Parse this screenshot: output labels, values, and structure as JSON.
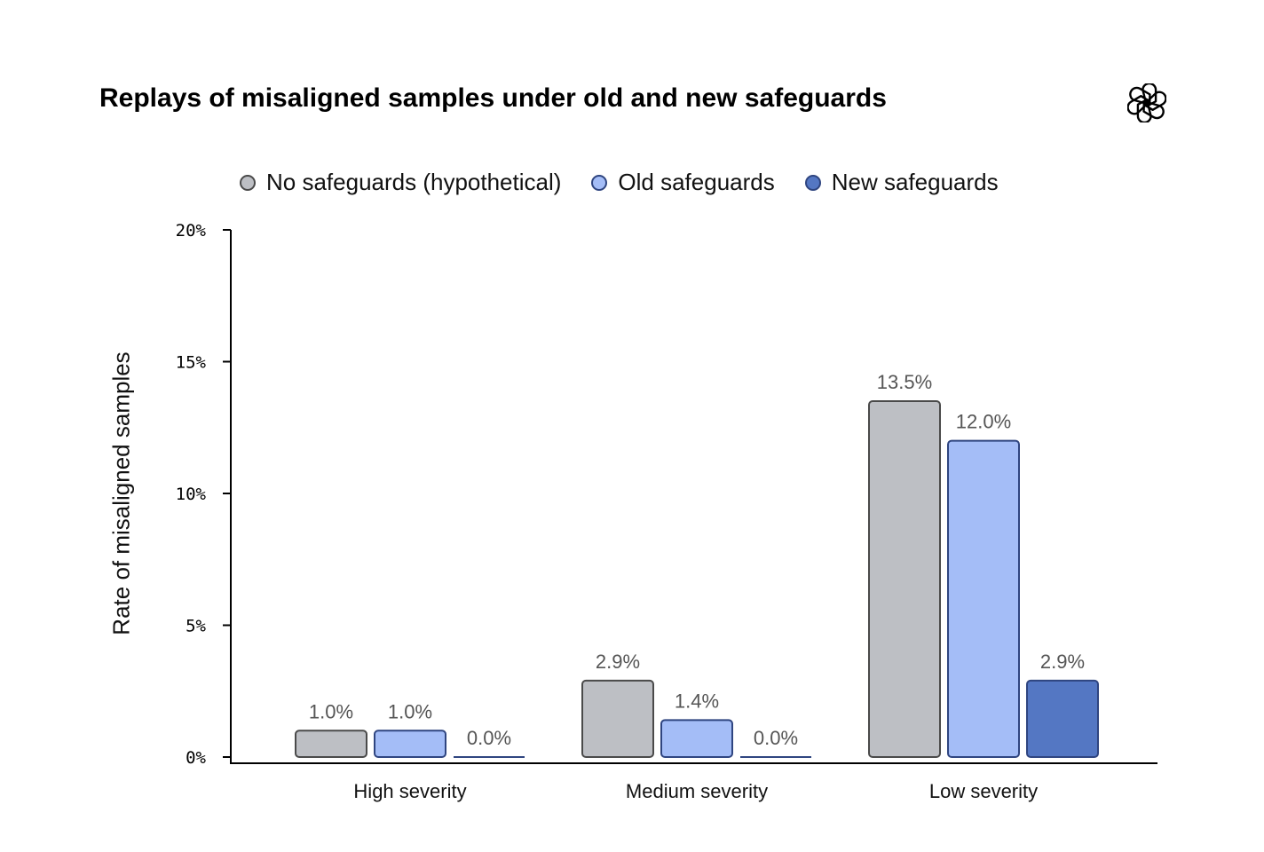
{
  "chart_data": {
    "type": "bar",
    "title": "Replays of misaligned samples under old and new safeguards",
    "xlabel": "",
    "ylabel": "Rate of misaligned samples",
    "categories": [
      "High severity",
      "Medium severity",
      "Low severity"
    ],
    "series": [
      {
        "name": "No safeguards (hypothetical)",
        "values": [
          1.0,
          2.9,
          13.5
        ],
        "labels": [
          "1.0%",
          "2.9%",
          "13.5%"
        ],
        "color": "#bdbfc4",
        "stroke": "#4a4a4a"
      },
      {
        "name": "Old safeguards",
        "values": [
          1.0,
          1.4,
          12.0
        ],
        "labels": [
          "1.0%",
          "1.4%",
          "12.0%"
        ],
        "color": "#a4bdf7",
        "stroke": "#2f4580"
      },
      {
        "name": "New safeguards",
        "values": [
          0.0,
          0.0,
          2.9
        ],
        "labels": [
          "0.0%",
          "0.0%",
          "2.9%"
        ],
        "color": "#5477c3",
        "stroke": "#2f4580"
      }
    ],
    "ylim": [
      0,
      20
    ],
    "yticks": [
      0,
      5,
      10,
      15,
      20
    ],
    "ytick_labels": [
      "0%",
      "5%",
      "10%",
      "15%",
      "20%"
    ],
    "legend_position": "top",
    "grid": false
  },
  "logo": {
    "name": "openai-logo-icon"
  }
}
